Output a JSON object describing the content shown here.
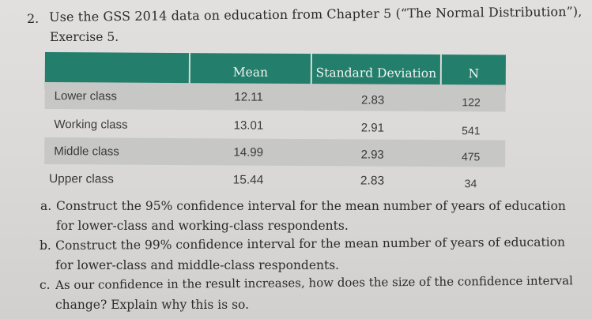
{
  "question": {
    "number": "2.",
    "line1": "Use the GSS 2014 data on education from Chapter 5 (“The Normal Distribution”),",
    "line2": "Exercise 5."
  },
  "table": {
    "headers": [
      "",
      "Mean",
      "Standard Deviation",
      "N"
    ],
    "rows": [
      {
        "label": "Lower class",
        "mean": "12.11",
        "sd": "2.83",
        "n": "122"
      },
      {
        "label": "Working class",
        "mean": "13.01",
        "sd": "2.91",
        "n": "541"
      },
      {
        "label": "Middle class",
        "mean": "14.99",
        "sd": "2.93",
        "n": "475"
      },
      {
        "label": "Upper class",
        "mean": "15.44",
        "sd": "2.83",
        "n": "34"
      }
    ],
    "header_color": "#237f6b"
  },
  "parts": [
    {
      "label": "a.",
      "line1": "Construct the 95% confidence interval for the mean number of years of education",
      "line2": "for lower-class and working-class respondents."
    },
    {
      "label": "b.",
      "line1": "Construct the 99% confidence interval for the mean number of years of education",
      "line2": "for lower-class and middle-class respondents."
    },
    {
      "label": "c.",
      "line1": "As our confidence in the result increases, how does the size of the confidence interval",
      "line2": "change? Explain why this is so."
    }
  ]
}
